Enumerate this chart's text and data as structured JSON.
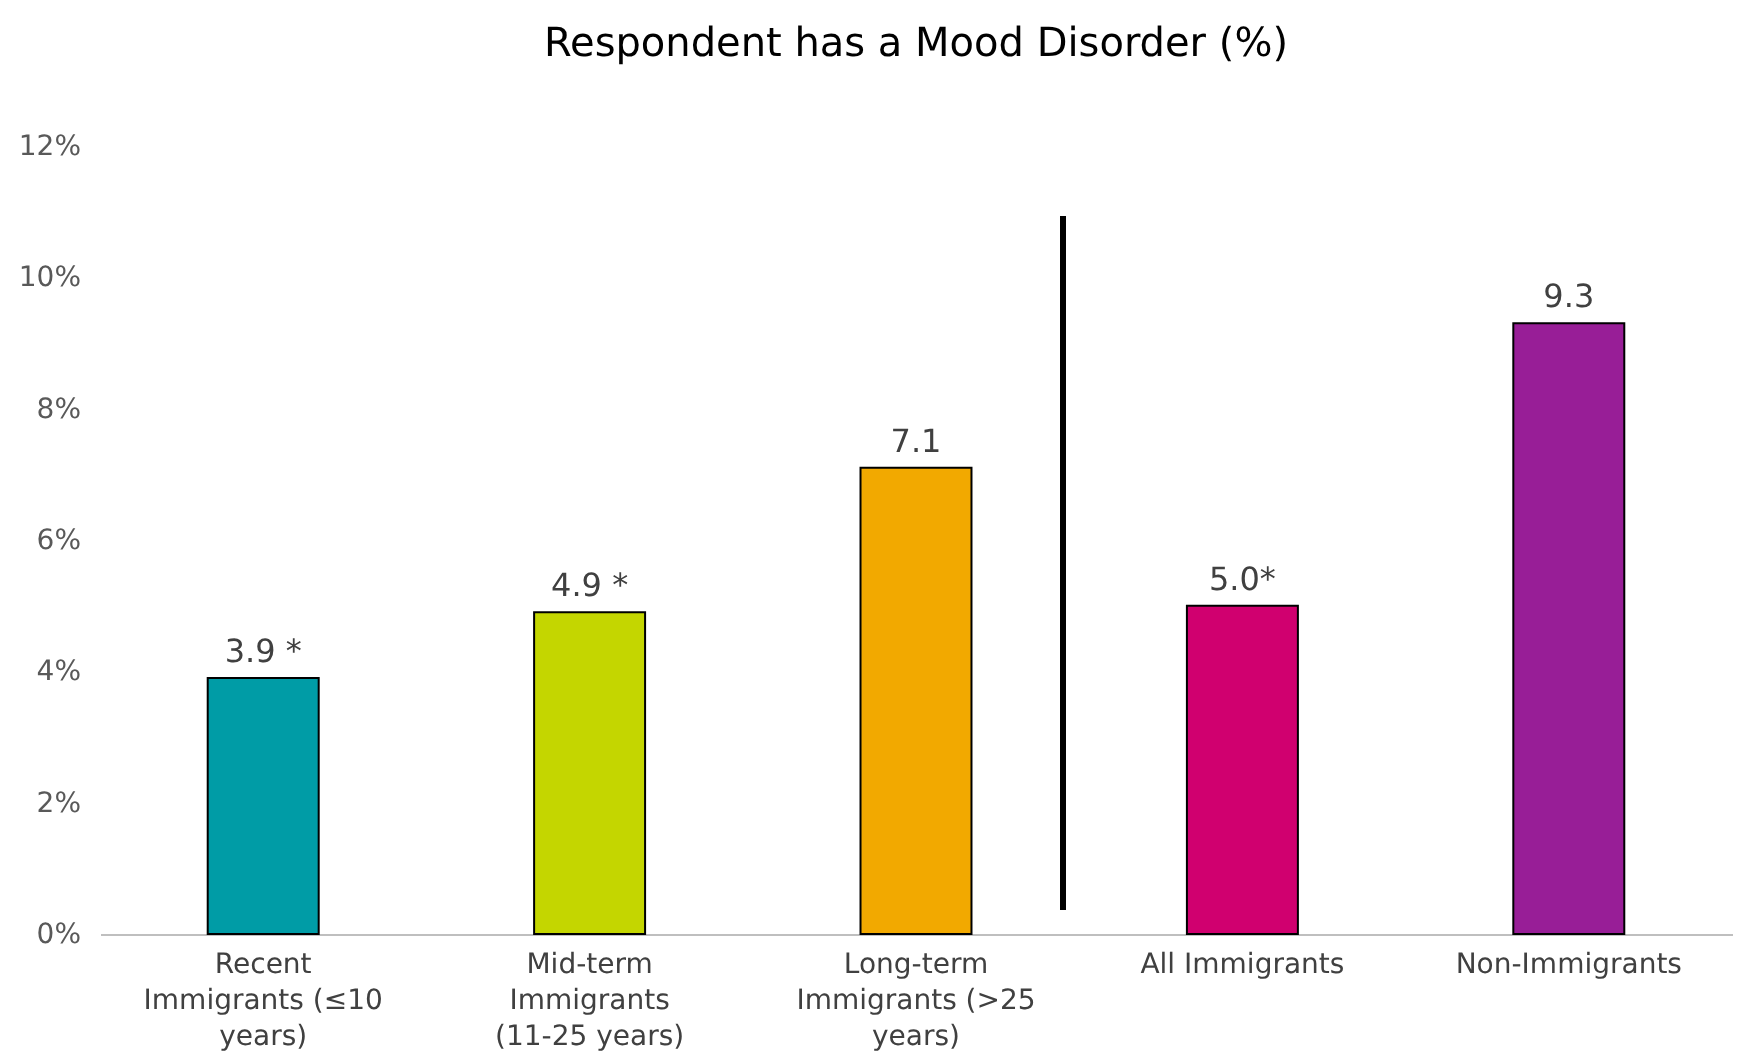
{
  "chart_data": {
    "type": "bar",
    "title": "Respondent has a Mood Disorder (%)",
    "categories": [
      "Recent Immigrants (≤10 years)",
      "Mid-term Immigrants (11-25 years)",
      "Long-term Immigrants (>25 years)",
      "All Immigrants",
      "Non-Immigrants"
    ],
    "values": [
      3.9,
      4.9,
      7.1,
      5.0,
      9.3
    ],
    "colors": [
      "#009ca6",
      "#c4d600",
      "#f2a900",
      "#d0006f",
      "#981e97"
    ],
    "value_labels": [
      "3.9 *",
      "4.9 *",
      "7.1",
      "5.0*",
      "9.3"
    ],
    "ylim": [
      0,
      12
    ],
    "yticks": [
      {
        "value": 0,
        "label": "0%"
      },
      {
        "value": 2,
        "label": "2%"
      },
      {
        "value": 4,
        "label": "4%"
      },
      {
        "value": 6,
        "label": "6%"
      },
      {
        "value": 8,
        "label": "8%"
      },
      {
        "value": 10,
        "label": "10%"
      },
      {
        "value": 12,
        "label": "12%"
      }
    ],
    "grid": false
  }
}
